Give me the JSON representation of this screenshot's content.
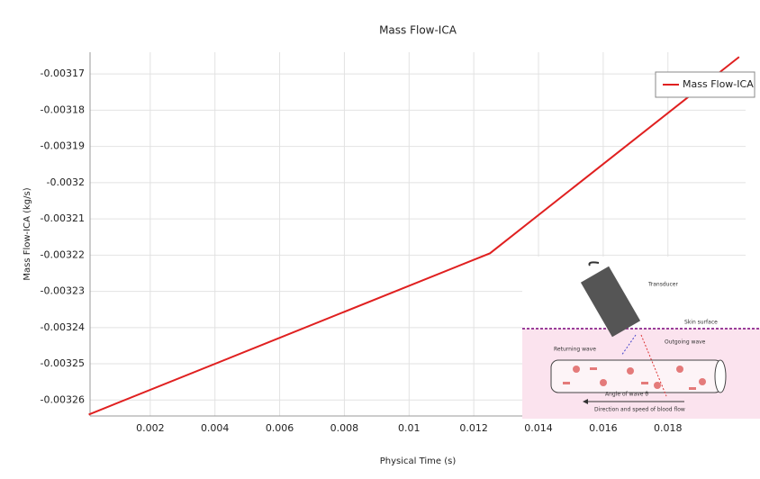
{
  "chart_data": {
    "type": "line",
    "title": "Mass Flow-ICA",
    "x_label": "Physical Time (s)",
    "y_label": "Mass Flow-ICA (kg/s)",
    "xlim": [
      0.00014,
      0.0204
    ],
    "ylim": [
      -0.0032644,
      -0.003164
    ],
    "xticks": [
      0.002,
      0.004,
      0.006,
      0.008,
      0.01,
      0.012,
      0.014,
      0.016,
      0.018
    ],
    "yticks": [
      -0.00317,
      -0.00318,
      -0.00319,
      -0.0032,
      -0.00321,
      -0.00322,
      -0.00323,
      -0.00324,
      -0.00325,
      -0.00326
    ],
    "grid": true,
    "legend": "upper right",
    "series": [
      {
        "name": "Mass Flow-ICA",
        "color": "#e02020",
        "x": [
          0.0001,
          0.0125,
          0.0202
        ],
        "values": [
          -0.003264,
          -0.0032195,
          -0.0031653
        ]
      }
    ]
  },
  "inset": {
    "labels": [
      "Transducer",
      "Skin surface",
      "Outgoing wave",
      "Returning wave",
      "Angle of wave θ",
      "Direction and speed of blood flow"
    ]
  }
}
